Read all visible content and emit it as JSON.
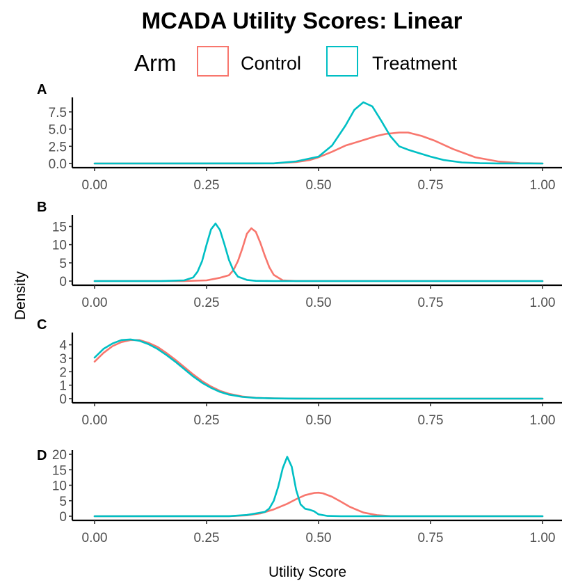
{
  "chart_data": {
    "type": "line",
    "title": "MCADA Utility Scores: Linear",
    "xlabel": "Utility Score",
    "ylabel": "Density",
    "legend": {
      "title": "Arm",
      "placement": "top",
      "entries": [
        {
          "name": "Control",
          "color": "#F8766D"
        },
        {
          "name": "Treatment",
          "color": "#00BFC4"
        }
      ]
    },
    "grid": false,
    "xlim": [
      0,
      1
    ],
    "x_ticks": [
      "0.00",
      "0.25",
      "0.50",
      "0.75",
      "1.00"
    ],
    "panels": [
      {
        "tag": "A",
        "ylim": [
          0,
          9
        ],
        "y_ticks": [
          "0.0",
          "2.5",
          "5.0",
          "7.5"
        ],
        "series": [
          {
            "name": "Control",
            "color": "#F8766D",
            "x": [
              0,
              0.35,
              0.4,
              0.45,
              0.48,
              0.5,
              0.53,
              0.56,
              0.6,
              0.63,
              0.65,
              0.68,
              0.7,
              0.73,
              0.76,
              0.8,
              0.85,
              0.9,
              0.95,
              1.0
            ],
            "y": [
              0,
              0,
              0.02,
              0.2,
              0.5,
              0.9,
              1.7,
              2.6,
              3.4,
              4.0,
              4.3,
              4.5,
              4.5,
              4.0,
              3.3,
              2.1,
              0.9,
              0.3,
              0.05,
              0
            ]
          },
          {
            "name": "Treatment",
            "color": "#00BFC4",
            "x": [
              0,
              0.4,
              0.45,
              0.5,
              0.53,
              0.56,
              0.58,
              0.6,
              0.62,
              0.64,
              0.66,
              0.68,
              0.7,
              0.72,
              0.75,
              0.78,
              0.82,
              0.86,
              0.9,
              1.0
            ],
            "y": [
              0,
              0.02,
              0.3,
              1.0,
              2.6,
              5.5,
              7.8,
              8.9,
              8.3,
              6.2,
              4.0,
              2.5,
              2.0,
              1.6,
              1.0,
              0.5,
              0.15,
              0.04,
              0.01,
              0
            ]
          }
        ]
      },
      {
        "tag": "B",
        "ylim": [
          0,
          17
        ],
        "y_ticks": [
          "0",
          "5",
          "10",
          "15"
        ],
        "series": [
          {
            "name": "Control",
            "color": "#F8766D",
            "x": [
              0,
              0.2,
              0.25,
              0.28,
              0.3,
              0.31,
              0.32,
              0.33,
              0.34,
              0.35,
              0.36,
              0.37,
              0.38,
              0.39,
              0.4,
              0.42,
              0.45,
              1.0
            ],
            "y": [
              0,
              0.01,
              0.2,
              0.9,
              1.6,
              3.0,
              5.5,
              9.0,
              13.0,
              14.5,
              13.5,
              10.5,
              7.0,
              3.8,
              1.7,
              0.2,
              0.01,
              0
            ]
          },
          {
            "name": "Treatment",
            "color": "#00BFC4",
            "x": [
              0,
              0.15,
              0.2,
              0.22,
              0.23,
              0.24,
              0.25,
              0.26,
              0.27,
              0.28,
              0.29,
              0.3,
              0.31,
              0.32,
              0.34,
              0.36,
              0.4,
              1.0
            ],
            "y": [
              0,
              0.01,
              0.2,
              1.0,
              2.6,
              5.5,
              10.0,
              14.2,
              15.8,
              14.0,
              10.0,
              5.8,
              2.9,
              1.2,
              0.3,
              0.05,
              0,
              0
            ]
          }
        ]
      },
      {
        "tag": "C",
        "ylim": [
          0,
          4.6
        ],
        "y_ticks": [
          "0",
          "1",
          "2",
          "3",
          "4"
        ],
        "series": [
          {
            "name": "Control",
            "color": "#F8766D",
            "x": [
              0,
              0.02,
              0.04,
              0.06,
              0.08,
              0.1,
              0.12,
              0.14,
              0.16,
              0.18,
              0.2,
              0.22,
              0.24,
              0.26,
              0.28,
              0.3,
              0.33,
              0.36,
              0.4,
              0.45,
              0.5,
              1.0
            ],
            "y": [
              2.75,
              3.4,
              3.9,
              4.2,
              4.35,
              4.35,
              4.15,
              3.85,
              3.4,
              2.9,
              2.35,
              1.8,
              1.3,
              0.9,
              0.58,
              0.36,
              0.16,
              0.06,
              0.02,
              0.005,
              0,
              0
            ]
          },
          {
            "name": "Treatment",
            "color": "#00BFC4",
            "x": [
              0,
              0.02,
              0.04,
              0.06,
              0.08,
              0.1,
              0.12,
              0.14,
              0.16,
              0.18,
              0.2,
              0.22,
              0.24,
              0.26,
              0.28,
              0.3,
              0.33,
              0.36,
              0.4,
              0.45,
              0.5,
              1.0
            ],
            "y": [
              3.05,
              3.7,
              4.1,
              4.35,
              4.4,
              4.3,
              4.05,
              3.7,
              3.25,
              2.75,
              2.2,
              1.65,
              1.18,
              0.8,
              0.5,
              0.3,
              0.13,
              0.05,
              0.015,
              0.004,
              0,
              0
            ]
          }
        ]
      },
      {
        "tag": "D",
        "ylim": [
          0,
          20
        ],
        "y_ticks": [
          "0",
          "5",
          "10",
          "15",
          "20"
        ],
        "series": [
          {
            "name": "Control",
            "color": "#F8766D",
            "x": [
              0,
              0.3,
              0.34,
              0.37,
              0.4,
              0.43,
              0.45,
              0.47,
              0.49,
              0.5,
              0.51,
              0.53,
              0.55,
              0.57,
              0.6,
              0.63,
              0.66,
              1.0
            ],
            "y": [
              0,
              0.02,
              0.3,
              0.9,
              2.2,
              4.0,
              5.5,
              6.8,
              7.5,
              7.6,
              7.4,
              6.3,
              4.7,
              3.0,
              1.2,
              0.35,
              0.05,
              0
            ]
          },
          {
            "name": "Treatment",
            "color": "#00BFC4",
            "x": [
              0,
              0.3,
              0.34,
              0.36,
              0.38,
              0.39,
              0.4,
              0.41,
              0.42,
              0.43,
              0.44,
              0.45,
              0.46,
              0.47,
              0.48,
              0.49,
              0.5,
              0.52,
              0.55,
              1.0
            ],
            "y": [
              0,
              0.02,
              0.4,
              0.9,
              1.4,
              2.5,
              5.0,
              9.5,
              15.5,
              19.2,
              16.0,
              8.5,
              3.8,
              2.4,
              2.1,
              1.6,
              0.6,
              0.1,
              0.01,
              0
            ]
          }
        ]
      }
    ]
  }
}
